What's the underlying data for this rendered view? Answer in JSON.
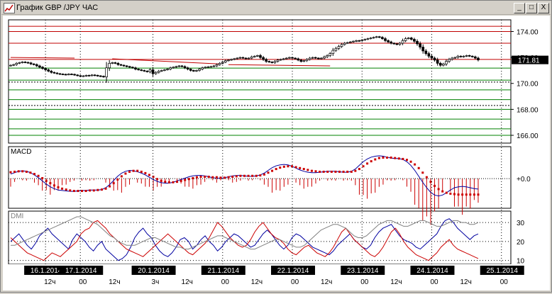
{
  "window": {
    "title": "График GBP /JPY  ЧАС",
    "buttons": {
      "minimize": "_",
      "maximize": "□",
      "close": "X"
    }
  },
  "colors": {
    "background": "#ffffff",
    "frame": "#d4d0c8",
    "candle_outline": "#000000",
    "resistance_line": "#c00000",
    "support_line": "#008000",
    "dotted_level": "#000000",
    "trend_line": "#c00000",
    "current_price_box": "#000000",
    "macd_line": "#0000a0",
    "macd_signal": "#cc0000",
    "macd_hist": "#cc0000",
    "dmi_plus": "#0000a0",
    "dmi_minus": "#cc0000",
    "adx": "#808080"
  },
  "chart_data": [
    {
      "type": "candlestick",
      "panel": "price",
      "ylim": [
        165.4,
        174.9
      ],
      "y_ticks": [
        "174.00",
        "172.00",
        "170.00",
        "168.00",
        "166.00"
      ],
      "y_tick_values": [
        174.0,
        172.0,
        170.0,
        168.0,
        166.0
      ],
      "current_price": "171.81",
      "current_price_value": 171.81,
      "x_labels": [
        {
          "date": "16.1.2014",
          "hour": "12ч",
          "index": 12
        },
        {
          "date": "17.1.2014",
          "hour": "00",
          "hour2": "12ч",
          "index": 24
        },
        {
          "date": "20.1.2014",
          "hour": "3ч",
          "hour2": "12ч",
          "index": 49
        },
        {
          "date": "21.1.2014",
          "hour": "00",
          "hour2": "12ч",
          "index": 73
        },
        {
          "date": "22.1.2014",
          "hour": "00",
          "hour2": "12ч",
          "index": 97
        },
        {
          "date": "23.1.2014",
          "hour": "00",
          "hour2": "12ч",
          "index": 121
        },
        {
          "date": "24.1.2014",
          "hour": "00",
          "hour2": "12ч",
          "index": 145
        },
        {
          "date": "25.1.2014",
          "hour": "00",
          "index": 169
        }
      ],
      "resistance_levels": [
        174.4,
        174.0,
        173.1,
        171.85
      ],
      "support_levels": [
        171.18,
        170.25,
        169.5,
        168.75,
        168.0,
        167.25,
        166.5,
        166.0
      ],
      "dotted_levels": [
        170.1,
        168.3
      ],
      "trend_lines": [
        {
          "x": [
            0,
            22
          ],
          "y": [
            172.0,
            171.95
          ]
        },
        {
          "x": [
            35,
            72
          ],
          "y": [
            171.9,
            171.5
          ]
        },
        {
          "x": [
            75,
            110
          ],
          "y": [
            171.45,
            171.35
          ]
        }
      ],
      "close": [
        171.4,
        171.45,
        171.55,
        171.6,
        171.65,
        171.62,
        171.58,
        171.5,
        171.45,
        171.35,
        171.25,
        171.15,
        171.05,
        170.95,
        170.85,
        170.8,
        170.75,
        170.72,
        170.7,
        170.68,
        170.72,
        170.7,
        170.65,
        170.6,
        170.55,
        170.58,
        170.62,
        170.6,
        170.65,
        170.62,
        170.58,
        170.55,
        170.5,
        171.2,
        171.55,
        171.6,
        171.55,
        171.45,
        171.4,
        171.35,
        171.3,
        171.25,
        171.2,
        171.1,
        171.05,
        171.0,
        170.95,
        170.9,
        171.05,
        170.75,
        170.85,
        170.95,
        171.0,
        171.05,
        171.1,
        171.2,
        171.25,
        171.3,
        171.35,
        171.3,
        171.2,
        171.1,
        171.0,
        170.95,
        171.0,
        171.1,
        171.2,
        171.25,
        171.28,
        171.3,
        171.35,
        171.45,
        171.55,
        171.65,
        171.75,
        171.8,
        171.85,
        171.9,
        171.95,
        172.0,
        171.95,
        171.9,
        171.95,
        172.05,
        172.1,
        172.15,
        172.0,
        171.85,
        171.7,
        171.65,
        171.6,
        171.7,
        171.8,
        171.85,
        171.9,
        171.95,
        172.0,
        171.95,
        171.9,
        171.8,
        171.7,
        171.75,
        171.85,
        171.95,
        172.0,
        171.95,
        171.9,
        171.95,
        172.05,
        172.15,
        172.3,
        172.55,
        172.7,
        172.85,
        173.0,
        173.1,
        173.15,
        173.2,
        173.25,
        173.3,
        173.28,
        173.35,
        173.4,
        173.45,
        173.5,
        173.55,
        173.6,
        173.55,
        173.45,
        173.3,
        173.2,
        173.1,
        173.05,
        173.0,
        173.1,
        173.3,
        173.45,
        173.5,
        173.4,
        173.25,
        173.05,
        172.8,
        172.5,
        172.3,
        172.1,
        171.95,
        171.8,
        171.55,
        171.4,
        171.5,
        171.7,
        171.85,
        171.95,
        172.0,
        172.1,
        172.05,
        172.1,
        172.15,
        172.1,
        172.05,
        171.95,
        171.81
      ]
    },
    {
      "type": "line",
      "panel": "macd",
      "label": "MACD",
      "ylim": [
        -0.65,
        0.7
      ],
      "y_ticks": [
        "+0.0"
      ],
      "y_tick_values": [
        0.0
      ],
      "series": [
        {
          "name": "MACD",
          "values": [
            0.1,
            0.13,
            0.16,
            0.17,
            0.16,
            0.13,
            0.08,
            0.02,
            -0.05,
            -0.12,
            -0.18,
            -0.22,
            -0.25,
            -0.26,
            -0.27,
            -0.28,
            -0.28,
            -0.27,
            -0.26,
            -0.26,
            -0.25,
            -0.25,
            -0.25,
            -0.24,
            -0.2,
            -0.13,
            -0.04,
            0.05,
            0.12,
            0.16,
            0.18,
            0.17,
            0.15,
            0.12,
            0.08,
            0.03,
            -0.02,
            -0.06,
            -0.09,
            -0.1,
            -0.1,
            -0.08,
            -0.05,
            -0.02,
            0.01,
            0.04,
            0.06,
            0.07,
            0.07,
            0.06,
            0.04,
            0.02,
            0.01,
            0.01,
            0.02,
            0.04,
            0.06,
            0.07,
            0.07,
            0.06,
            0.05,
            0.05,
            0.06,
            0.08,
            0.12,
            0.18,
            0.24,
            0.28,
            0.3,
            0.31,
            0.3,
            0.27,
            0.23,
            0.19,
            0.16,
            0.14,
            0.13,
            0.13,
            0.14,
            0.15,
            0.16,
            0.16,
            0.16,
            0.15,
            0.14,
            0.14,
            0.16,
            0.21,
            0.29,
            0.37,
            0.43,
            0.47,
            0.49,
            0.5,
            0.49,
            0.47,
            0.45,
            0.44,
            0.44,
            0.42,
            0.37,
            0.29,
            0.18,
            0.05,
            -0.08,
            -0.2,
            -0.3,
            -0.36,
            -0.38,
            -0.36,
            -0.31,
            -0.25,
            -0.2,
            -0.18,
            -0.17,
            -0.18,
            -0.2,
            -0.22,
            -0.23
          ]
        },
        {
          "name": "Signal",
          "values": [
            0.14,
            0.15,
            0.16,
            0.16,
            0.15,
            0.13,
            0.1,
            0.06,
            0.01,
            -0.05,
            -0.1,
            -0.15,
            -0.19,
            -0.22,
            -0.24,
            -0.26,
            -0.27,
            -0.27,
            -0.27,
            -0.27,
            -0.26,
            -0.26,
            -0.25,
            -0.24,
            -0.22,
            -0.17,
            -0.1,
            -0.02,
            0.05,
            0.11,
            0.15,
            0.17,
            0.17,
            0.15,
            0.12,
            0.08,
            0.04,
            -0.01,
            -0.05,
            -0.07,
            -0.08,
            -0.08,
            -0.07,
            -0.05,
            -0.03,
            -0.01,
            0.01,
            0.03,
            0.04,
            0.04,
            0.04,
            0.03,
            0.03,
            0.02,
            0.02,
            0.03,
            0.04,
            0.05,
            0.06,
            0.06,
            0.06,
            0.06,
            0.06,
            0.07,
            0.09,
            0.13,
            0.17,
            0.21,
            0.24,
            0.26,
            0.27,
            0.27,
            0.25,
            0.23,
            0.21,
            0.19,
            0.17,
            0.16,
            0.15,
            0.15,
            0.15,
            0.15,
            0.15,
            0.15,
            0.15,
            0.15,
            0.15,
            0.17,
            0.21,
            0.27,
            0.33,
            0.38,
            0.42,
            0.45,
            0.46,
            0.46,
            0.46,
            0.45,
            0.44,
            0.43,
            0.41,
            0.37,
            0.31,
            0.23,
            0.13,
            0.03,
            -0.07,
            -0.16,
            -0.23,
            -0.28,
            -0.31,
            -0.33,
            -0.34,
            -0.35,
            -0.35,
            -0.35,
            -0.35,
            -0.35,
            -0.35
          ]
        }
      ]
    },
    {
      "type": "line",
      "panel": "dmi",
      "label": "DMI",
      "ylim": [
        8,
        36
      ],
      "y_ticks": [
        "30",
        "20",
        "10"
      ],
      "y_tick_values": [
        30,
        20,
        10
      ],
      "series": [
        {
          "name": "+DI",
          "values": [
            20,
            22,
            24,
            21,
            18,
            16,
            19,
            23,
            25,
            27,
            24,
            22,
            20,
            18,
            16,
            21,
            24,
            22,
            20,
            17,
            15,
            18,
            20,
            16,
            14,
            12,
            10,
            11,
            13,
            17,
            22,
            25,
            27,
            24,
            22,
            18,
            15,
            13,
            12,
            14,
            17,
            21,
            22,
            20,
            16,
            18,
            21,
            23,
            20,
            18,
            15,
            17,
            20,
            22,
            24,
            23,
            21,
            19,
            17,
            18,
            21,
            24,
            26,
            24,
            21,
            18,
            16,
            18,
            22,
            24,
            23,
            21,
            19,
            17,
            16,
            15,
            14,
            13,
            15,
            18,
            20,
            22,
            24,
            21,
            19,
            17,
            16,
            18,
            22,
            25,
            27,
            28,
            29,
            26,
            23,
            21,
            20,
            19,
            17,
            16,
            18,
            20,
            22,
            24,
            28,
            31,
            32,
            30,
            27,
            25,
            23,
            21,
            23,
            24
          ]
        },
        {
          "name": "-DI",
          "values": [
            22,
            20,
            18,
            16,
            14,
            13,
            12,
            11,
            10,
            12,
            14,
            13,
            12,
            14,
            16,
            18,
            20,
            24,
            26,
            27,
            30,
            31,
            29,
            27,
            24,
            22,
            20,
            18,
            16,
            15,
            14,
            13,
            12,
            14,
            16,
            18,
            20,
            22,
            24,
            22,
            20,
            18,
            16,
            14,
            13,
            15,
            17,
            19,
            22,
            26,
            30,
            28,
            25,
            22,
            20,
            18,
            17,
            18,
            21,
            25,
            28,
            30,
            27,
            24,
            22,
            21,
            19,
            16,
            14,
            13,
            15,
            17,
            18,
            16,
            14,
            13,
            12,
            14,
            17,
            21,
            25,
            27,
            24,
            21,
            19,
            17,
            15,
            13,
            12,
            14,
            17,
            21,
            25,
            27,
            24,
            20,
            17,
            15,
            13,
            12,
            11,
            10,
            12,
            14,
            17,
            19,
            21,
            18,
            16,
            15,
            14,
            13,
            12,
            11
          ]
        },
        {
          "name": "ADX",
          "values": [
            18,
            18,
            19,
            20,
            21,
            22,
            23,
            24,
            25,
            26,
            27,
            28,
            29,
            30,
            31,
            32,
            33,
            33,
            32,
            31,
            30,
            29,
            27,
            25,
            23,
            22,
            20,
            19,
            18,
            18,
            18,
            19,
            20,
            21,
            22,
            22,
            21,
            20,
            19,
            18,
            17,
            17,
            16,
            16,
            17,
            18,
            19,
            20,
            21,
            22,
            23,
            23,
            22,
            21,
            20,
            19,
            18,
            17,
            16,
            16,
            17,
            18,
            19,
            20,
            21,
            21,
            20,
            19,
            18,
            17,
            17,
            18,
            20,
            22,
            24,
            26,
            27,
            28,
            29,
            29,
            28,
            27,
            25,
            23,
            22,
            22,
            23,
            25,
            27,
            29,
            30,
            31,
            31,
            30,
            29,
            28,
            28,
            29,
            30,
            31,
            31,
            30,
            29,
            28,
            28,
            29,
            30,
            31,
            31,
            30,
            30,
            29,
            29,
            30
          ]
        }
      ]
    }
  ]
}
